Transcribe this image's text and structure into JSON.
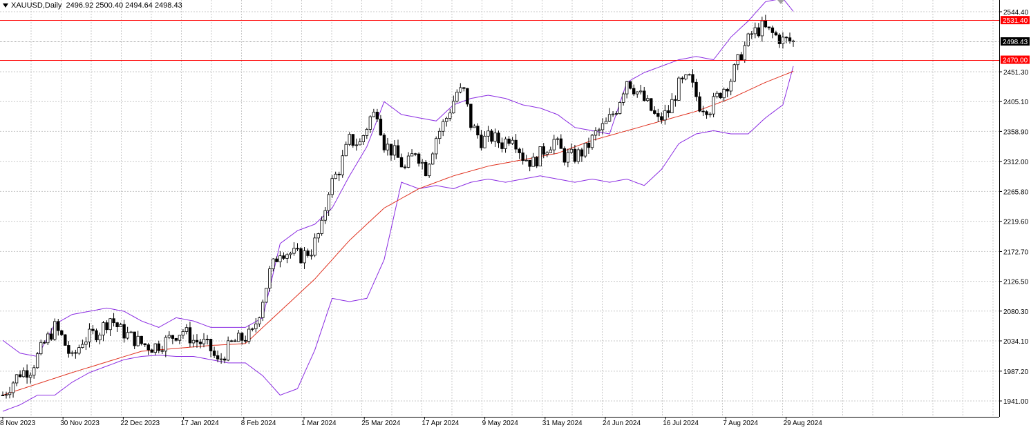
{
  "header": {
    "symbol": "XAUUSD,Daily",
    "ohlc": "2496.92 2500.40 2494.64 2498.43"
  },
  "chart_data": {
    "type": "candlestick",
    "symbol": "XAUUSD",
    "timeframe": "Daily",
    "ylim": [
      1941.0,
      2544.4
    ],
    "y_ticks": [
      "2544.40",
      "2451.30",
      "2405.10",
      "2358.90",
      "2312.00",
      "2265.80",
      "2219.60",
      "2172.70",
      "2126.50",
      "2080.30",
      "2034.10",
      "1987.20",
      "1941.00"
    ],
    "x_ticks": [
      "8 Nov 2023",
      "30 Nov 2023",
      "22 Dec 2023",
      "17 Jan 2024",
      "8 Feb 2024",
      "1 Mar 2024",
      "25 Mar 2024",
      "17 Apr 2024",
      "9 May 2024",
      "31 May 2024",
      "24 Jun 2024",
      "16 Jul 2024",
      "7 Aug 2024",
      "29 Aug 2024"
    ],
    "levels": [
      {
        "label": "2531.40",
        "value": 2531.4,
        "color": "#ff0000"
      },
      {
        "label": "2470.00",
        "value": 2470.0,
        "color": "#ff0000"
      }
    ],
    "current_price": {
      "label": "2498.43",
      "value": 2498.43
    },
    "anchors": [
      [
        0,
        1950
      ],
      [
        5,
        1985
      ],
      [
        8,
        1990
      ],
      [
        12,
        2030
      ],
      [
        15,
        2055
      ],
      [
        17,
        2040
      ],
      [
        20,
        2005
      ],
      [
        23,
        2035
      ],
      [
        28,
        2050
      ],
      [
        31,
        2070
      ],
      [
        34,
        2050
      ],
      [
        37,
        2040
      ],
      [
        40,
        2030
      ],
      [
        43,
        2025
      ],
      [
        46,
        2030
      ],
      [
        50,
        2045
      ],
      [
        52,
        2050
      ],
      [
        55,
        2035
      ],
      [
        58,
        2030
      ],
      [
        60,
        2020
      ],
      [
        62,
        2000
      ],
      [
        64,
        2015
      ],
      [
        66,
        2030
      ],
      [
        70,
        2040
      ],
      [
        72,
        2045
      ],
      [
        74,
        2080
      ],
      [
        77,
        2140
      ],
      [
        80,
        2175
      ],
      [
        83,
        2170
      ],
      [
        86,
        2165
      ],
      [
        89,
        2175
      ],
      [
        92,
        2210
      ],
      [
        94,
        2270
      ],
      [
        97,
        2300
      ],
      [
        100,
        2345
      ],
      [
        103,
        2340
      ],
      [
        106,
        2380
      ],
      [
        108,
        2390
      ],
      [
        110,
        2340
      ],
      [
        113,
        2325
      ],
      [
        116,
        2300
      ],
      [
        119,
        2330
      ],
      [
        122,
        2300
      ],
      [
        125,
        2350
      ],
      [
        128,
        2380
      ],
      [
        131,
        2420
      ],
      [
        133,
        2420
      ],
      [
        135,
        2370
      ],
      [
        138,
        2345
      ],
      [
        141,
        2350
      ],
      [
        144,
        2340
      ],
      [
        147,
        2355
      ],
      [
        150,
        2320
      ],
      [
        153,
        2310
      ],
      [
        156,
        2330
      ],
      [
        159,
        2345
      ],
      [
        162,
        2320
      ],
      [
        165,
        2320
      ],
      [
        168,
        2330
      ],
      [
        171,
        2355
      ],
      [
        174,
        2370
      ],
      [
        177,
        2395
      ],
      [
        180,
        2440
      ],
      [
        183,
        2420
      ],
      [
        186,
        2400
      ],
      [
        189,
        2375
      ],
      [
        192,
        2390
      ],
      [
        195,
        2430
      ],
      [
        198,
        2440
      ],
      [
        201,
        2400
      ],
      [
        204,
        2395
      ],
      [
        207,
        2420
      ],
      [
        210,
        2440
      ],
      [
        213,
        2480
      ],
      [
        216,
        2510
      ],
      [
        219,
        2520
      ],
      [
        222,
        2510
      ],
      [
        225,
        2500
      ],
      [
        228,
        2498.43
      ]
    ],
    "ma": [
      [
        0,
        1950
      ],
      [
        20,
        1985
      ],
      [
        40,
        2018
      ],
      [
        60,
        2027
      ],
      [
        70,
        2030
      ],
      [
        80,
        2080
      ],
      [
        90,
        2130
      ],
      [
        100,
        2190
      ],
      [
        110,
        2240
      ],
      [
        120,
        2270
      ],
      [
        130,
        2290
      ],
      [
        140,
        2305
      ],
      [
        150,
        2315
      ],
      [
        160,
        2325
      ],
      [
        170,
        2345
      ],
      [
        180,
        2360
      ],
      [
        190,
        2375
      ],
      [
        200,
        2390
      ],
      [
        210,
        2410
      ],
      [
        220,
        2435
      ],
      [
        228,
        2452
      ]
    ],
    "bb_upper": [
      [
        0,
        2035
      ],
      [
        5,
        2015
      ],
      [
        10,
        2010
      ],
      [
        15,
        2060
      ],
      [
        20,
        2075
      ],
      [
        25,
        2080
      ],
      [
        30,
        2085
      ],
      [
        35,
        2080
      ],
      [
        40,
        2065
      ],
      [
        45,
        2055
      ],
      [
        50,
        2070
      ],
      [
        55,
        2065
      ],
      [
        60,
        2055
      ],
      [
        65,
        2055
      ],
      [
        70,
        2055
      ],
      [
        75,
        2070
      ],
      [
        80,
        2185
      ],
      [
        85,
        2205
      ],
      [
        90,
        2215
      ],
      [
        95,
        2240
      ],
      [
        100,
        2290
      ],
      [
        105,
        2335
      ],
      [
        110,
        2405
      ],
      [
        115,
        2385
      ],
      [
        120,
        2380
      ],
      [
        125,
        2375
      ],
      [
        130,
        2400
      ],
      [
        135,
        2410
      ],
      [
        140,
        2415
      ],
      [
        145,
        2410
      ],
      [
        150,
        2400
      ],
      [
        155,
        2395
      ],
      [
        160,
        2385
      ],
      [
        165,
        2365
      ],
      [
        170,
        2360
      ],
      [
        175,
        2355
      ],
      [
        180,
        2435
      ],
      [
        185,
        2450
      ],
      [
        190,
        2460
      ],
      [
        195,
        2470
      ],
      [
        200,
        2475
      ],
      [
        205,
        2470
      ],
      [
        210,
        2505
      ],
      [
        215,
        2530
      ],
      [
        220,
        2560
      ],
      [
        225,
        2565
      ],
      [
        228,
        2545
      ]
    ],
    "bb_lower": [
      [
        0,
        1925
      ],
      [
        5,
        1935
      ],
      [
        10,
        1950
      ],
      [
        15,
        1950
      ],
      [
        20,
        1970
      ],
      [
        25,
        1985
      ],
      [
        30,
        1995
      ],
      [
        35,
        2005
      ],
      [
        40,
        2010
      ],
      [
        45,
        2012
      ],
      [
        50,
        2010
      ],
      [
        55,
        2010
      ],
      [
        60,
        2005
      ],
      [
        65,
        2000
      ],
      [
        70,
        2000
      ],
      [
        75,
        1980
      ],
      [
        80,
        1950
      ],
      [
        85,
        1960
      ],
      [
        90,
        2020
      ],
      [
        95,
        2100
      ],
      [
        100,
        2095
      ],
      [
        105,
        2100
      ],
      [
        110,
        2160
      ],
      [
        115,
        2280
      ],
      [
        120,
        2270
      ],
      [
        125,
        2275
      ],
      [
        130,
        2270
      ],
      [
        135,
        2280
      ],
      [
        140,
        2285
      ],
      [
        145,
        2280
      ],
      [
        150,
        2285
      ],
      [
        155,
        2290
      ],
      [
        160,
        2285
      ],
      [
        165,
        2280
      ],
      [
        170,
        2285
      ],
      [
        175,
        2280
      ],
      [
        180,
        2285
      ],
      [
        185,
        2275
      ],
      [
        190,
        2300
      ],
      [
        195,
        2340
      ],
      [
        200,
        2355
      ],
      [
        205,
        2360
      ],
      [
        210,
        2355
      ],
      [
        215,
        2355
      ],
      [
        220,
        2380
      ],
      [
        225,
        2400
      ],
      [
        228,
        2460
      ]
    ]
  }
}
